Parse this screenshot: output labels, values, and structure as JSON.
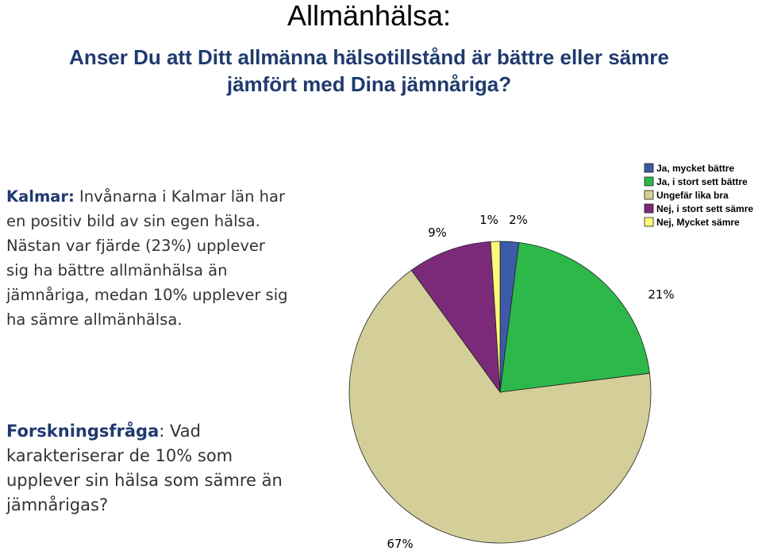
{
  "header": {
    "title": "Allmänhälsa:",
    "subtitle_line1": "Anser Du att Ditt allmänna hälsotillstånd är bättre eller sämre",
    "subtitle_line2": "jämfört med Dina jämnåriga?"
  },
  "summary": {
    "lead": "Kalmar:",
    "text": " Invånarna i Kalmar län har en positiv bild av sin egen hälsa. Nästan var fjärde (23%) upplever sig ha bättre allmänhälsa än jämnåriga, medan 10% upplever sig ha sämre allmänhälsa."
  },
  "question": {
    "lead": "Forskningsfråga",
    "text": ": Vad karakteriserar de 10% som upplever sin hälsa som sämre än jämnårigas?"
  },
  "chart_data": {
    "type": "pie",
    "title": "",
    "legend_position": "top-right",
    "slices": [
      {
        "name": "Ja, mycket bättre",
        "value": 2,
        "label": "2%",
        "color": "#3c5aa8"
      },
      {
        "name": "Ja, i stort sett bättre",
        "value": 21,
        "label": "21%",
        "color": "#2db84a"
      },
      {
        "name": "Ungefär lika bra",
        "value": 67,
        "label": "67%",
        "color": "#d4cf98"
      },
      {
        "name": "Nej, i stort sett sämre",
        "value": 9,
        "label": "9%",
        "color": "#7b2a7a"
      },
      {
        "name": "Nej, Mycket sämre",
        "value": 1,
        "label": "1%",
        "color": "#fafa78"
      }
    ]
  }
}
